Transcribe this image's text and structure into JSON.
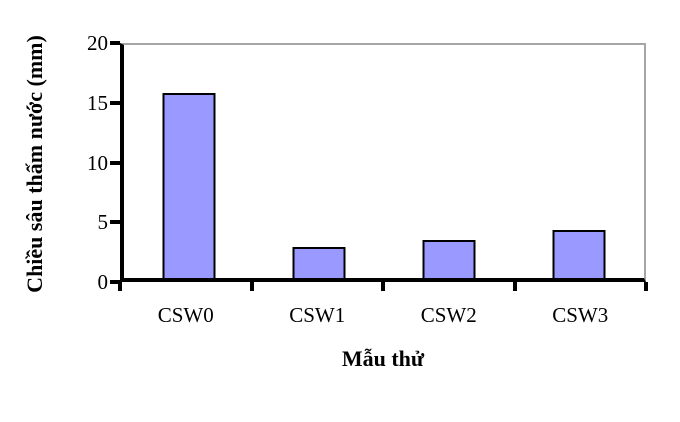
{
  "chart_data": {
    "type": "bar",
    "title": "",
    "categories": [
      "CSW0",
      "CSW1",
      "CSW2",
      "CSW3"
    ],
    "values": [
      15.5,
      2.6,
      3.2,
      4.0
    ],
    "xlabel": "Mẫu thử",
    "ylabel": "Chiều sâu thấm nước (mm)",
    "ylim": [
      0,
      20
    ],
    "yticks": [
      0,
      5,
      10,
      15,
      20
    ],
    "legend_position": "none",
    "grid": "top-border-only",
    "colors": {
      "bar_fill": "#9999FF",
      "bar_border": "#000000",
      "axis": "#000000",
      "plot_border": "#A6A6A6",
      "background": "#FFFFFF"
    }
  }
}
